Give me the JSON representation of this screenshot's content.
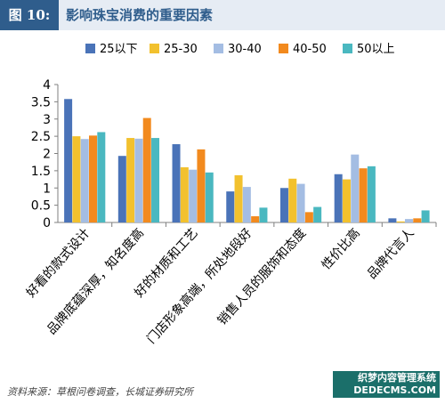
{
  "header": {
    "fig_label": "图 10:",
    "title": "影响珠宝消费的重要因素"
  },
  "footer": {
    "source": "资料来源：草根问卷调查，长城证券研究所"
  },
  "watermark": {
    "line1": "织梦内容管理系统",
    "line2": "DEDECMS.COM"
  },
  "chart_data": {
    "type": "bar",
    "ylim": [
      0,
      4
    ],
    "yticks": [
      "0",
      "0.5",
      "1",
      "1.5",
      "2",
      "2.5",
      "3",
      "3.5",
      "4"
    ],
    "grid": false,
    "legend_position": "top",
    "categories": [
      "好看的款式设计",
      "品牌底蕴深厚，知名度高",
      "好的材质和工艺",
      "门店形象高端，所处地段好",
      "销售人员的服饰和态度",
      "性价比高",
      "品牌代言人"
    ],
    "series": [
      {
        "name": "25以下",
        "color": "#4a73b8",
        "values": [
          3.58,
          1.93,
          2.27,
          0.9,
          1.0,
          1.4,
          0.12
        ]
      },
      {
        "name": "25-30",
        "color": "#f2c12e",
        "values": [
          2.5,
          2.45,
          1.6,
          1.37,
          1.27,
          1.25,
          0.03
        ]
      },
      {
        "name": "30-40",
        "color": "#a4bde3",
        "values": [
          2.42,
          2.43,
          1.53,
          1.03,
          1.12,
          1.97,
          0.1
        ]
      },
      {
        "name": "40-50",
        "color": "#f28a1e",
        "values": [
          2.52,
          3.03,
          2.12,
          0.18,
          0.3,
          1.57,
          0.12
        ]
      },
      {
        "name": "50以上",
        "color": "#4ab8c0",
        "values": [
          2.62,
          2.45,
          1.45,
          0.43,
          0.45,
          1.63,
          0.35
        ]
      }
    ]
  }
}
